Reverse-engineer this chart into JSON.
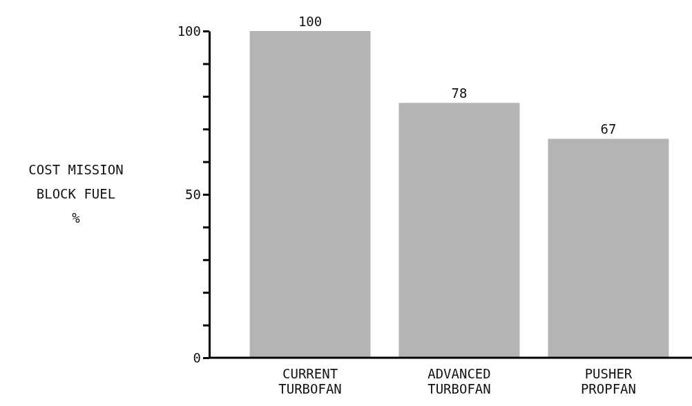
{
  "chart_data": {
    "type": "bar",
    "ylabel": "COST MISSION\nBLOCK FUEL\n%",
    "categories": [
      "CURRENT\nTURBOFAN",
      "ADVANCED\nTURBOFAN",
      "PUSHER\nPROPFAN"
    ],
    "values": [
      100,
      78,
      67
    ],
    "color": "#b4b4b4",
    "data_labels": true,
    "ylim": [
      0,
      100
    ],
    "yticks": [
      0,
      {
        "value": 10,
        "label": null
      },
      {
        "value": 20,
        "label": null
      },
      {
        "value": 30,
        "label": null
      },
      {
        "value": 40,
        "label": null
      },
      50,
      {
        "value": 60,
        "label": null
      },
      {
        "value": 70,
        "label": null
      },
      {
        "value": 80,
        "label": null
      },
      {
        "value": 90,
        "label": null
      },
      100
    ]
  }
}
